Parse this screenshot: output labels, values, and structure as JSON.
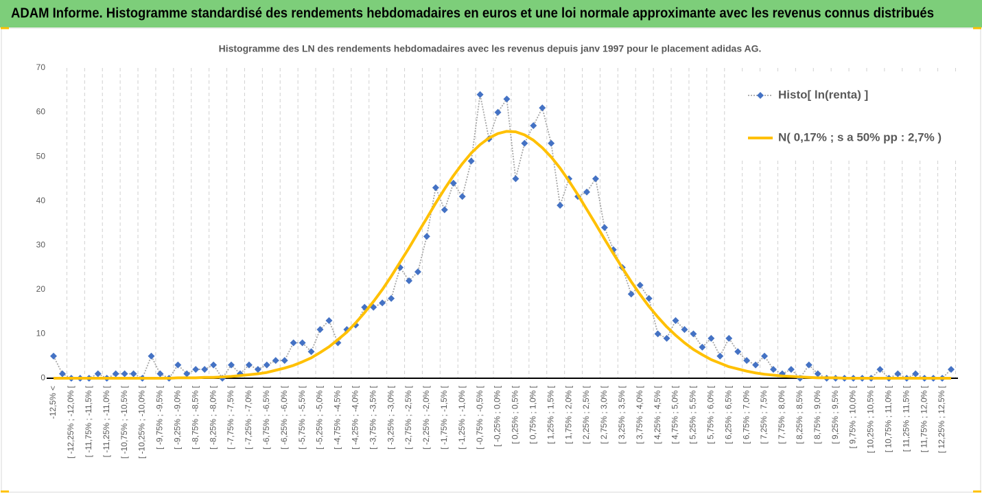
{
  "header": {
    "title": "ADAM Informe. Histogramme standardisé des rendements hebdomadaires en euros et une loi normale approximante avec les revenus connus distribués"
  },
  "chart_data": {
    "type": "line",
    "title": "Histogramme des LN des rendements hebdomadaires avec les revenus depuis janv 1997 pour le placement adidas AG.",
    "categories": [
      "-12,5% <",
      null,
      "[ -12,25% ; -12,0% [",
      null,
      "[ -11,75% ; -11,5% [",
      null,
      "[ -11,25% ; -11,0% [",
      null,
      "[ -10,75% ; -10,5% [",
      null,
      "[ -10,25% ; -10,0% [",
      null,
      "[ -9,75% ; -9,5% [",
      null,
      "[ -9,25% ; -9,0% [",
      null,
      "[ -8,75% ; -8,5% [",
      null,
      "[ -8,25% ; -8,0% [",
      null,
      "[ -7,75% ; -7,5% [",
      null,
      "[ -7,25% ; -7,0% [",
      null,
      "[ -6,75% ; -6,5% [",
      null,
      "[ -6,25% ; -6,0% [",
      null,
      "[ -5,75% ; -5,5% [",
      null,
      "[ -5,25% ; -5,0% [",
      null,
      "[ -4,75% ; -4,5% [",
      null,
      "[ -4,25% ; -4,0% [",
      null,
      "[ -3,75% ; -3,5% [",
      null,
      "[ -3,25% ; -3,0% [",
      null,
      "[ -2,75% ; -2,5% [",
      null,
      "[ -2,25% ; -2,0% [",
      null,
      "[ -1,75% ; -1,5% [",
      null,
      "[ -1,25% ; -1,0% [",
      null,
      "[ -0,75% ; -0,5% [",
      null,
      "[ -0,25% ; 0,0% [",
      null,
      "[ 0,25% ; 0,5% [",
      null,
      "[ 0,75% ; 1,0% [",
      null,
      "[ 1,25% ; 1,5% [",
      null,
      "[ 1,75% ; 2,0% [",
      null,
      "[ 2,25% ; 2,5% [",
      null,
      "[ 2,75% ; 3,0% [",
      null,
      "[ 3,25% ; 3,5% [",
      null,
      "[ 3,75% ; 4,0% [",
      null,
      "[ 4,25% ; 4,5% [",
      null,
      "[ 4,75% ; 5,0% [",
      null,
      "[ 5,25% ; 5,5% [",
      null,
      "[ 5,75% ; 6,0% [",
      null,
      "[ 6,25% ; 6,5% [",
      null,
      "[ 6,75% ; 7,0% [",
      null,
      "[ 7,25% ; 7,5% [",
      null,
      "[ 7,75% ; 8,0% [",
      null,
      "[ 8,25% ; 8,5% [",
      null,
      "[ 8,75% ; 9,0% [",
      null,
      "[ 9,25% ; 9,5% [",
      null,
      "[ 9,75% ; 10,0% [",
      null,
      "[ 10,25% ; 10,5% [",
      null,
      "[ 10,75% ; 11,0% [",
      null,
      "[ 11,25% ; 11,5% [",
      null,
      "[ 11,75% ; 12,0% [",
      null,
      "[ 12,25% ; 12,5% [",
      null
    ],
    "series": [
      {
        "name": "Histo[ ln(renta) ]",
        "color": "#4472c4",
        "line_color": "#a6a6a6",
        "line_style": "dotted",
        "marker": "diamond",
        "values": [
          5,
          1,
          0,
          0,
          0,
          1,
          0,
          1,
          1,
          1,
          0,
          5,
          1,
          0,
          3,
          1,
          2,
          2,
          3,
          0,
          3,
          1,
          3,
          2,
          3,
          4,
          4,
          8,
          8,
          6,
          11,
          13,
          8,
          11,
          12,
          16,
          16,
          17,
          18,
          25,
          22,
          24,
          32,
          43,
          38,
          44,
          41,
          49,
          64,
          54,
          60,
          63,
          45,
          53,
          57,
          61,
          53,
          39,
          45,
          41,
          42,
          45,
          34,
          29,
          25,
          19,
          21,
          18,
          10,
          9,
          13,
          11,
          10,
          7,
          9,
          5,
          9,
          6,
          4,
          3,
          5,
          2,
          1,
          2,
          0,
          3,
          1,
          0,
          0,
          0,
          0,
          0,
          0,
          2,
          0,
          1,
          0,
          1,
          0,
          0,
          0,
          2
        ]
      },
      {
        "name": "N( 0,17% ; s a 50% pp : 2,7% )",
        "color": "#ffc000",
        "line_style": "solid",
        "marker": "none",
        "values": [
          0,
          0,
          0,
          0,
          0,
          0,
          0,
          0,
          0,
          0,
          0,
          0,
          0,
          0,
          0.1,
          0.1,
          0.1,
          0.2,
          0.2,
          0.3,
          0.4,
          0.6,
          0.8,
          1.0,
          1.3,
          1.8,
          2.3,
          2.9,
          3.7,
          4.6,
          5.8,
          7.1,
          8.7,
          10.4,
          12.5,
          14.8,
          17.3,
          20.0,
          23.0,
          26.2,
          29.4,
          32.8,
          36.1,
          39.5,
          42.7,
          45.7,
          48.4,
          50.8,
          52.7,
          54.2,
          55.2,
          55.7,
          55.6,
          54.9,
          53.7,
          52.0,
          49.9,
          47.4,
          44.5,
          41.4,
          38.1,
          34.8,
          31.4,
          28.1,
          24.9,
          21.8,
          18.9,
          16.2,
          13.8,
          11.6,
          9.7,
          8.0,
          6.5,
          5.3,
          4.2,
          3.4,
          2.6,
          2.1,
          1.6,
          1.2,
          0.9,
          0.7,
          0.5,
          0.4,
          0.3,
          0.2,
          0.1,
          0.1,
          0.1,
          0,
          0,
          0,
          0,
          0,
          0,
          0,
          0,
          0,
          0,
          0,
          0,
          0
        ]
      }
    ],
    "ylim": [
      0,
      70
    ],
    "yticks": [
      0,
      10,
      20,
      30,
      40,
      50,
      60,
      70
    ],
    "grid": false,
    "vertical_grid": "dashed",
    "legend": "top-right"
  }
}
